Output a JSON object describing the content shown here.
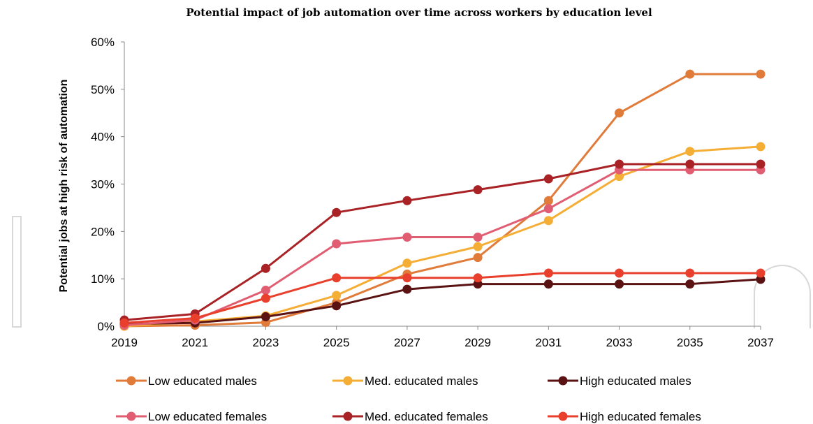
{
  "chart_data": {
    "type": "line",
    "title": "Potential impact of job automation over time across workers by education level",
    "ylabel": "Potential jobs at high risk of automation",
    "xlabel": "",
    "x": [
      "2019",
      "2021",
      "2023",
      "2025",
      "2027",
      "2029",
      "2031",
      "2033",
      "2035",
      "2037"
    ],
    "ylim": [
      0,
      60
    ],
    "yticks": [
      0,
      10,
      20,
      30,
      40,
      50,
      60
    ],
    "ytick_labels": [
      "0%",
      "10%",
      "20%",
      "30%",
      "40%",
      "50%",
      "60%"
    ],
    "grid": false,
    "legend_position": "bottom",
    "series": [
      {
        "name": "Low educated males",
        "color": "#E07B39",
        "values": [
          0,
          0.2,
          0.8,
          5,
          11,
          14.5,
          26.5,
          45,
          53.2,
          53.2
        ]
      },
      {
        "name": "Med. educated males",
        "color": "#F5AE35",
        "values": [
          0,
          1,
          2.2,
          6.5,
          13.3,
          16.8,
          22.3,
          31.6,
          36.9,
          37.9
        ]
      },
      {
        "name": "High educated males",
        "color": "#5A1212",
        "values": [
          0.5,
          0.7,
          2,
          4.3,
          7.8,
          8.9,
          8.9,
          8.9,
          8.9,
          9.9
        ]
      },
      {
        "name": "Low educated females",
        "color": "#E15D72",
        "values": [
          0.2,
          1.3,
          7.6,
          17.4,
          18.8,
          18.8,
          24.8,
          33,
          33,
          33
        ]
      },
      {
        "name": "Med. educated females",
        "color": "#A92225",
        "values": [
          1.3,
          2.6,
          12.2,
          24,
          26.5,
          28.8,
          31.1,
          34.2,
          34.2,
          34.2
        ]
      },
      {
        "name": "High educated females",
        "color": "#E8402D",
        "values": [
          0.7,
          1.7,
          5.9,
          10.2,
          10.2,
          10.2,
          11.2,
          11.2,
          11.2,
          11.2
        ]
      }
    ]
  }
}
